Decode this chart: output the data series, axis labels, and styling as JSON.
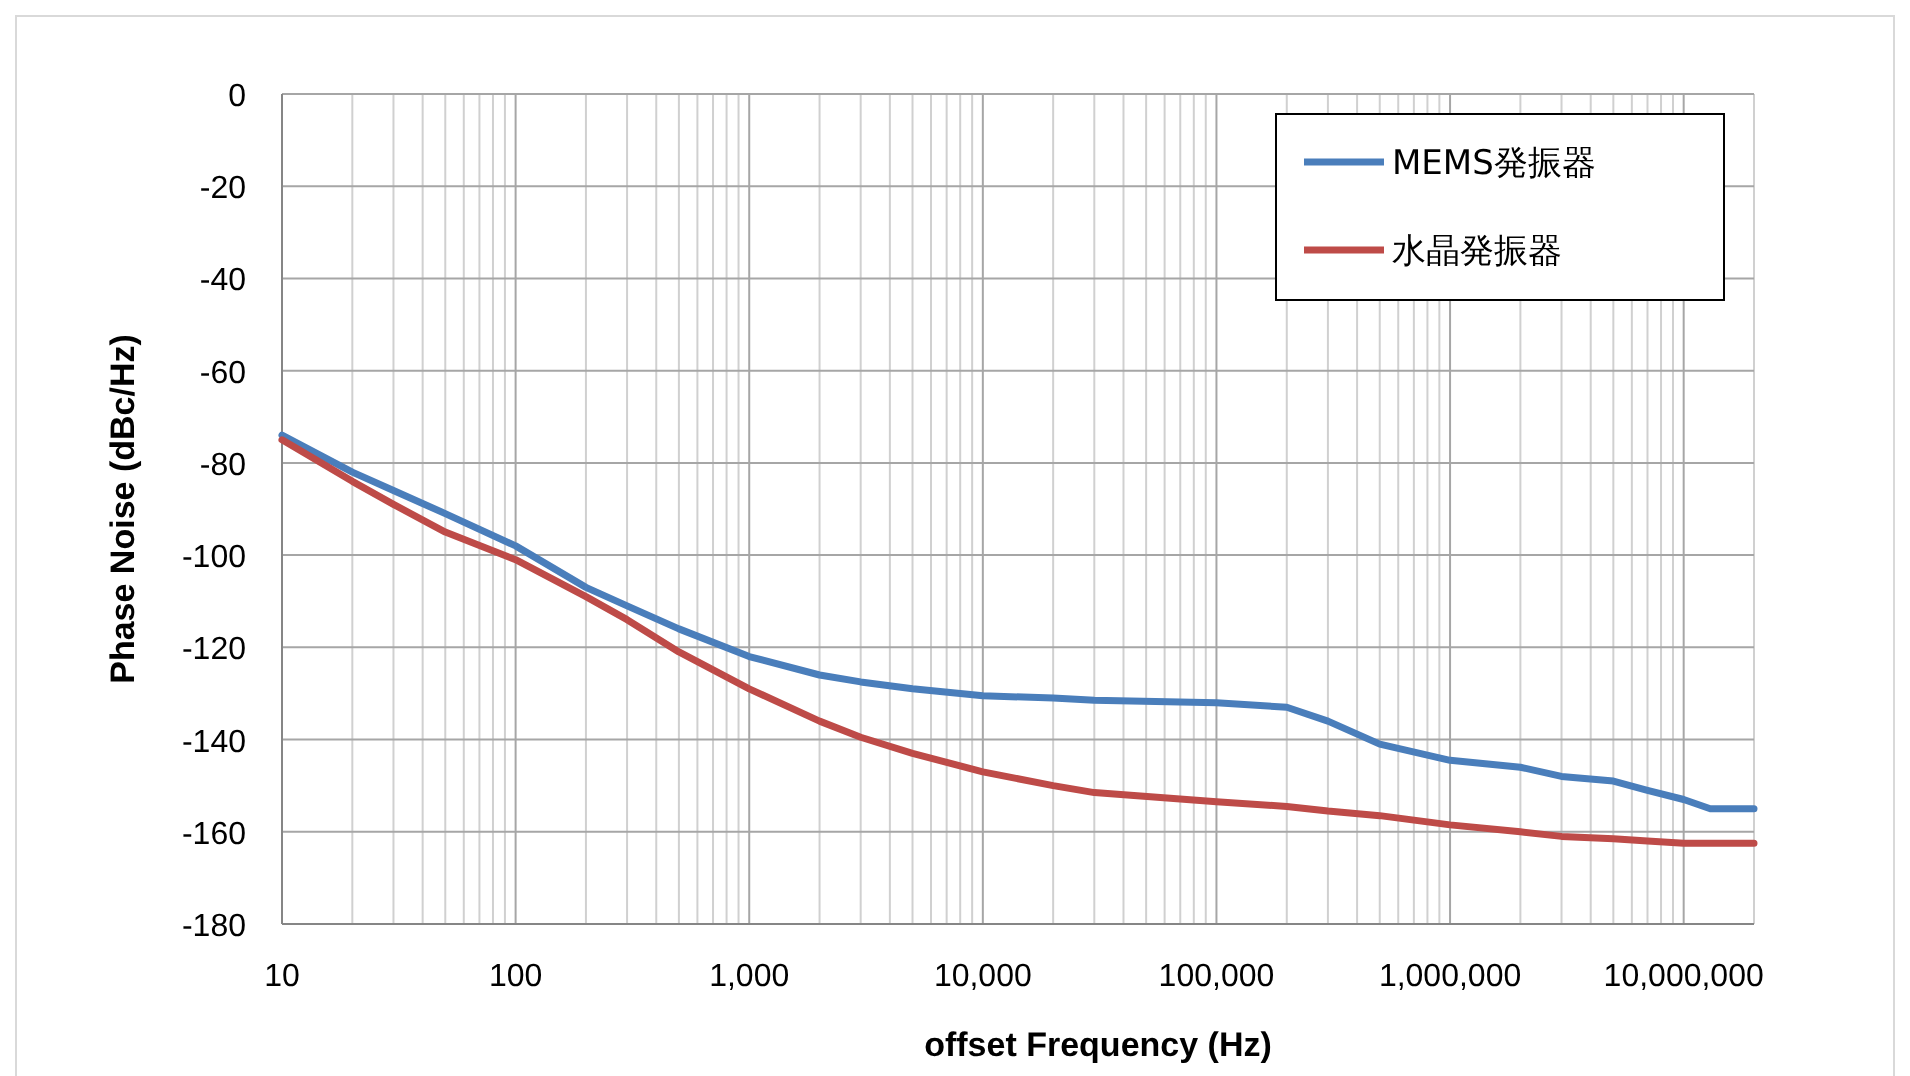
{
  "chart_data": {
    "type": "line",
    "xlabel": "offset Frequency (Hz)",
    "ylabel": "Phase Noise (dBc/Hz)",
    "log": "x",
    "grid": true,
    "legend": "top right",
    "line_style": "solid",
    "marker": "none",
    "xlim": [
      10,
      20000000
    ],
    "ylim": [
      -180,
      0
    ],
    "xticks": [
      10,
      100,
      {
        "value": 1000,
        "label": "1,000"
      },
      {
        "value": 10000,
        "label": "10,000"
      },
      {
        "value": 100000,
        "label": "100,000"
      },
      {
        "value": 1000000,
        "label": "1,000,000"
      },
      {
        "value": 10000000,
        "label": "10,000,000"
      }
    ],
    "yticks": [
      -180,
      -160,
      -140,
      -120,
      -100,
      -80,
      -60,
      -40,
      -20,
      0
    ],
    "x": [
      10,
      20,
      30,
      50,
      100,
      200,
      300,
      500,
      1000,
      2000,
      3000,
      5000,
      10000,
      20000,
      30000,
      100000,
      200000,
      300000,
      500000,
      1000000,
      2000000,
      3000000,
      5000000,
      7000000,
      10000000,
      13000000,
      20000000
    ],
    "series": [
      {
        "name": "MEMS発振器",
        "color": "#4a7ebb",
        "values": [
          -74,
          -82,
          -86,
          -91,
          -98,
          -107,
          -111,
          -116,
          -122,
          -126,
          -127.5,
          -129,
          -130.5,
          -131,
          -131.5,
          -132,
          -133,
          -136,
          -141,
          -144.5,
          -146,
          -148,
          -149,
          -151,
          -153,
          -155,
          -155
        ]
      },
      {
        "name": "水晶発振器",
        "color": "#be4b48",
        "values": [
          -75,
          -84,
          -89,
          -95,
          -101,
          -109,
          -114,
          -121,
          -129,
          -136,
          -139.5,
          -143,
          -147,
          -150,
          -151.5,
          -153.5,
          -154.5,
          -155.5,
          -156.5,
          -158.5,
          -160,
          -161,
          -161.5,
          -162,
          -162.5,
          -162.5,
          -162.5
        ]
      }
    ]
  }
}
